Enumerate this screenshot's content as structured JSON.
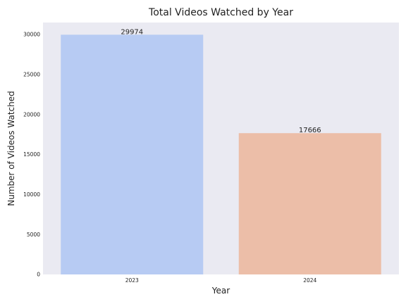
{
  "chart_data": {
    "type": "bar",
    "title": "Total Videos Watched by Year",
    "xlabel": "Year",
    "ylabel": "Number of Videos Watched",
    "categories": [
      "2023",
      "2024"
    ],
    "values": [
      29974,
      17666
    ],
    "data_labels": [
      "29974",
      "17666"
    ],
    "colors": [
      "#b7cbf3",
      "#ecbea8"
    ],
    "ylim": [
      0,
      31500
    ],
    "yticks": [
      0,
      5000,
      10000,
      15000,
      20000,
      25000,
      30000
    ],
    "ytick_labels": [
      "0",
      "5000",
      "10000",
      "15000",
      "20000",
      "25000",
      "30000"
    ],
    "grid": false,
    "background": "#eaeaf2"
  }
}
